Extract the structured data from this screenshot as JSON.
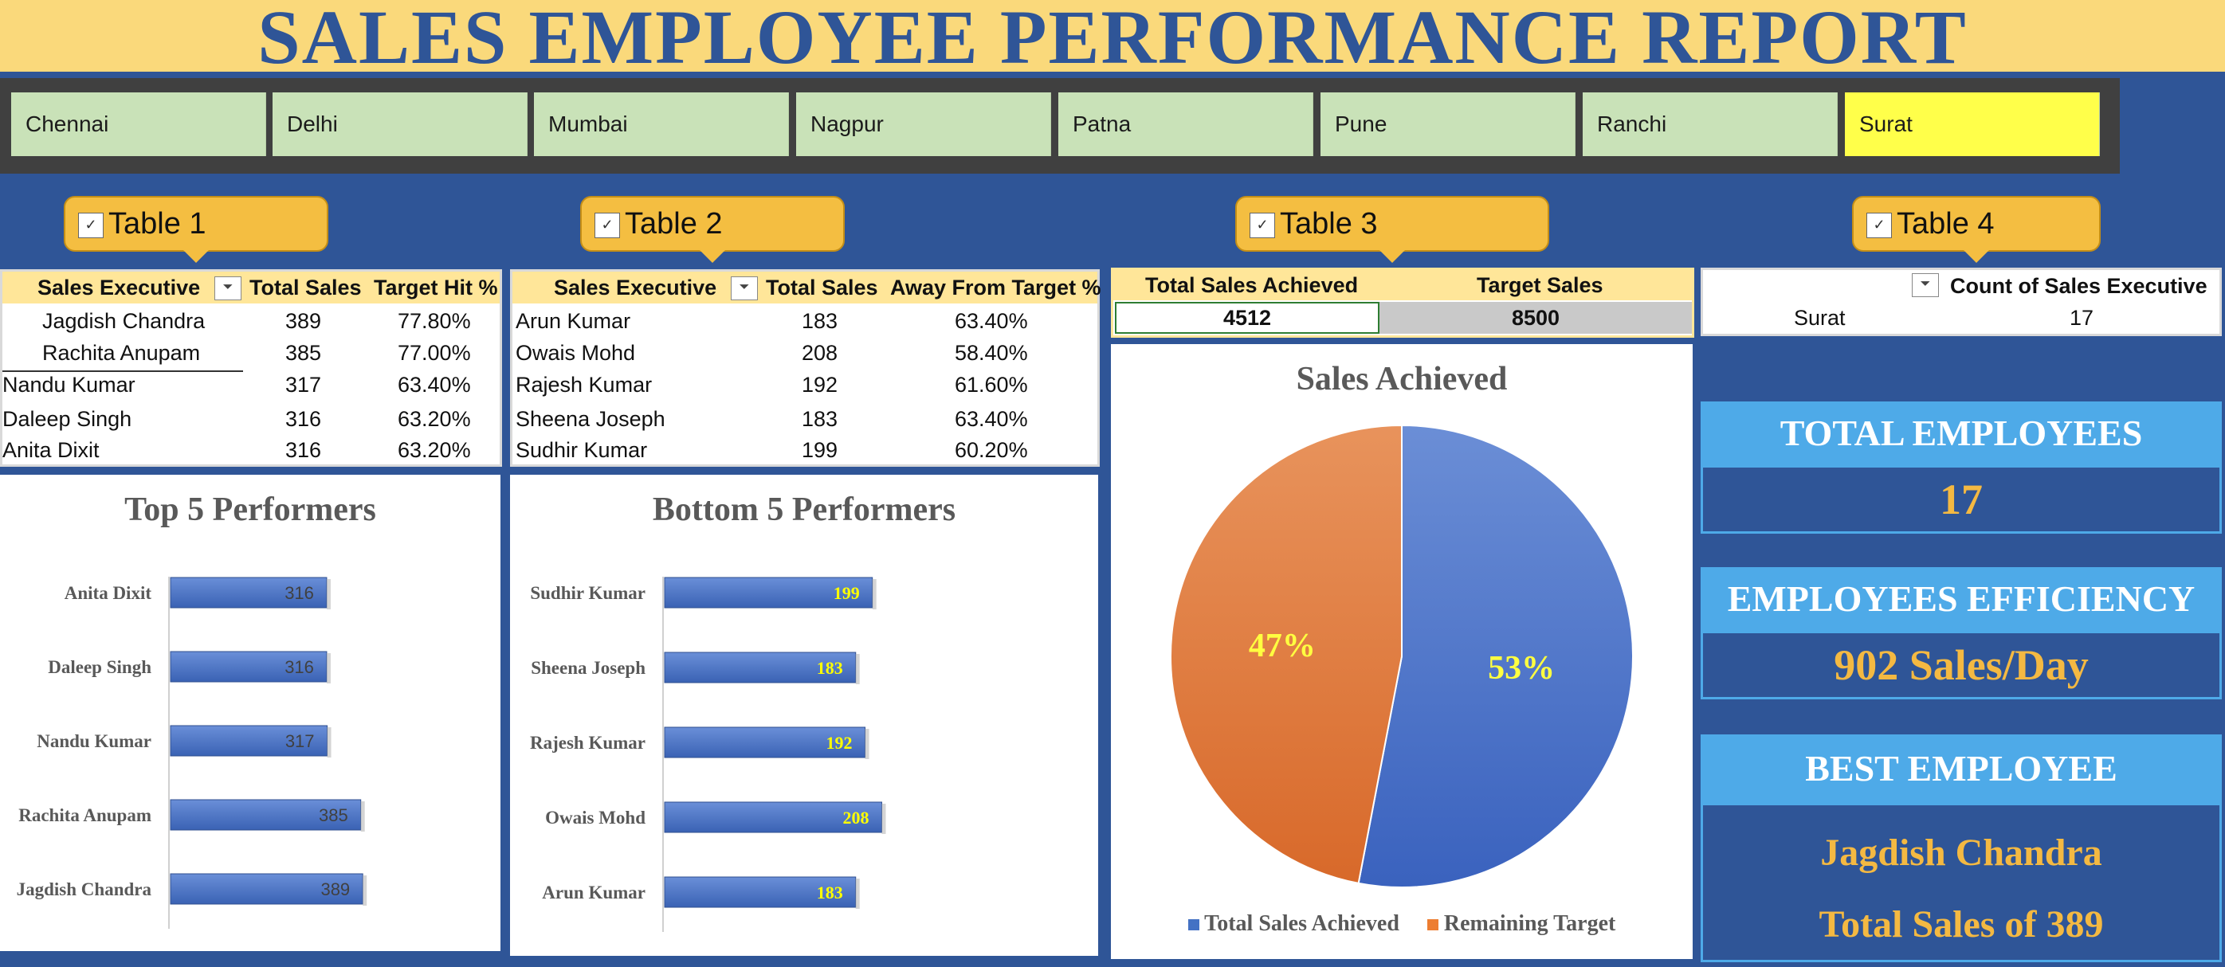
{
  "title": "SALES EMPLOYEE PERFORMANCE REPORT",
  "slicer": {
    "items": [
      "Chennai",
      "Delhi",
      "Mumbai",
      "Nagpur",
      "Patna",
      "Pune",
      "Ranchi",
      "Surat"
    ],
    "selected": "Surat"
  },
  "tabs": [
    "Table 1",
    "Table 2",
    "Table 3",
    "Table 4"
  ],
  "table1": {
    "headers": [
      "Sales Executive",
      "Total Sales",
      "Target Hit %"
    ],
    "rows": [
      [
        "Jagdish Chandra",
        "389",
        "77.80%"
      ],
      [
        "Rachita Anupam",
        "385",
        "77.00%"
      ],
      [
        "Nandu Kumar",
        "317",
        "63.40%"
      ],
      [
        "Daleep Singh",
        "316",
        "63.20%"
      ],
      [
        "Anita Dixit",
        "316",
        "63.20%"
      ]
    ]
  },
  "table2": {
    "headers": [
      "Sales Executive",
      "Total Sales",
      "Away From Target %"
    ],
    "rows": [
      [
        "Arun Kumar",
        "183",
        "63.40%"
      ],
      [
        "Owais Mohd",
        "208",
        "58.40%"
      ],
      [
        "Rajesh Kumar",
        "192",
        "61.60%"
      ],
      [
        "Sheena Joseph",
        "183",
        "63.40%"
      ],
      [
        "Sudhir Kumar",
        "199",
        "60.20%"
      ]
    ]
  },
  "table3": {
    "headers": [
      "Total Sales Achieved",
      "Target Sales"
    ],
    "values": [
      "4512",
      "8500"
    ]
  },
  "table4": {
    "header": "Count of Sales Executive",
    "row_label": "Surat",
    "row_value": "17"
  },
  "kpis": {
    "total_employees": {
      "label": "TOTAL EMPLOYEES",
      "value": "17"
    },
    "efficiency": {
      "label": "EMPLOYEES EFFICIENCY",
      "value": "902 Sales/Day"
    },
    "best": {
      "label": "BEST EMPLOYEE",
      "name": "Jagdish Chandra",
      "detail": "Total Sales of 389"
    }
  },
  "colors": {
    "background": "#2F5597",
    "bar": "#4472C4",
    "pie_achieved": "#4472C4",
    "pie_remaining": "#ED7D31",
    "accent": "#F4BE41",
    "kpi_head": "#4EAAE8"
  },
  "chart_data": [
    {
      "type": "bar",
      "orientation": "horizontal",
      "title": "Top 5 Performers",
      "categories": [
        "Anita Dixit",
        "Daleep Singh",
        "Nandu Kumar",
        "Rachita Anupam",
        "Jagdish Chandra"
      ],
      "values": [
        316,
        316,
        317,
        385,
        389
      ],
      "value_label_color": "#404040"
    },
    {
      "type": "bar",
      "orientation": "horizontal",
      "title": "Bottom 5 Performers",
      "categories": [
        "Sudhir Kumar",
        "Sheena Joseph",
        "Rajesh Kumar",
        "Owais Mohd",
        "Arun Kumar"
      ],
      "values": [
        199,
        183,
        192,
        208,
        183
      ],
      "value_label_color": "#FFFF00"
    },
    {
      "type": "pie",
      "title": "Sales Achieved",
      "labels": [
        "Total Sales Achieved",
        "Remaining Target"
      ],
      "values": [
        53,
        47
      ],
      "value_labels": [
        "53%",
        "47%"
      ],
      "legend": "bottom"
    }
  ]
}
